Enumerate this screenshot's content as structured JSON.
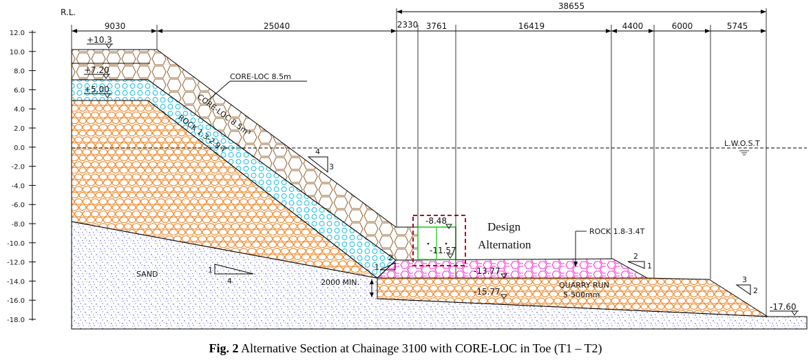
{
  "rl_label": "R.L.",
  "axis_ticks": [
    "12.0",
    "10.0",
    "8.0",
    "6.0",
    "4.0",
    "2.0",
    "0.0",
    "-2.0",
    "-4.0",
    "-6.0",
    "-8.0",
    "-10.0",
    "-12.0",
    "-14.0",
    "-16.0",
    "-18.0"
  ],
  "top_dims": {
    "overall": "38655",
    "segments": [
      "9030",
      "25040",
      "2330",
      "3761",
      "16419",
      "4400",
      "6000",
      "5745"
    ]
  },
  "levels": {
    "crest": "+10.3",
    "l720": "+7.20",
    "l500": "+5.00",
    "toe_top": "-8.48",
    "toe_bottom": "-11.57",
    "berm": "-13.77",
    "base": "-15.77",
    "outer": "-17.60"
  },
  "labels": {
    "core_loc_callout": "CORE-LOC 8.5m",
    "core_loc_slope": "CORE-LOC 8.5m³",
    "rock_slope": "ROCK 1.3-2.9 T",
    "lwost": "L.W.O.S.T",
    "rock_toe": "ROCK 1.8-3.4T",
    "quarry_run": "QUARRY RUN",
    "quarry_size": "5-500mm",
    "sand": "SAND",
    "min_thickness": "2000 MIN.",
    "design_line1": "Design",
    "design_line2": "Alternation"
  },
  "slopes": {
    "main": [
      "4",
      "3"
    ],
    "sand": [
      "1",
      "4"
    ],
    "toe_left": [
      "1",
      "2"
    ],
    "berm_right": [
      "2",
      "1"
    ],
    "outer": [
      "3",
      "2"
    ]
  },
  "caption": {
    "bold": "Fig. 2",
    "text": "Alternative Section at Chainage 3100 with CORE-LOC in Toe (T1 – T2)"
  },
  "colors": {
    "rock_core": "#f28a2e",
    "filter": "#22c3e6",
    "armour": "#9b6a3a",
    "toe_rock": "#ff2bd6",
    "design_box": "#b0001e",
    "coreloc_toe": "#22cc22",
    "sand": "#2b2bd6"
  }
}
